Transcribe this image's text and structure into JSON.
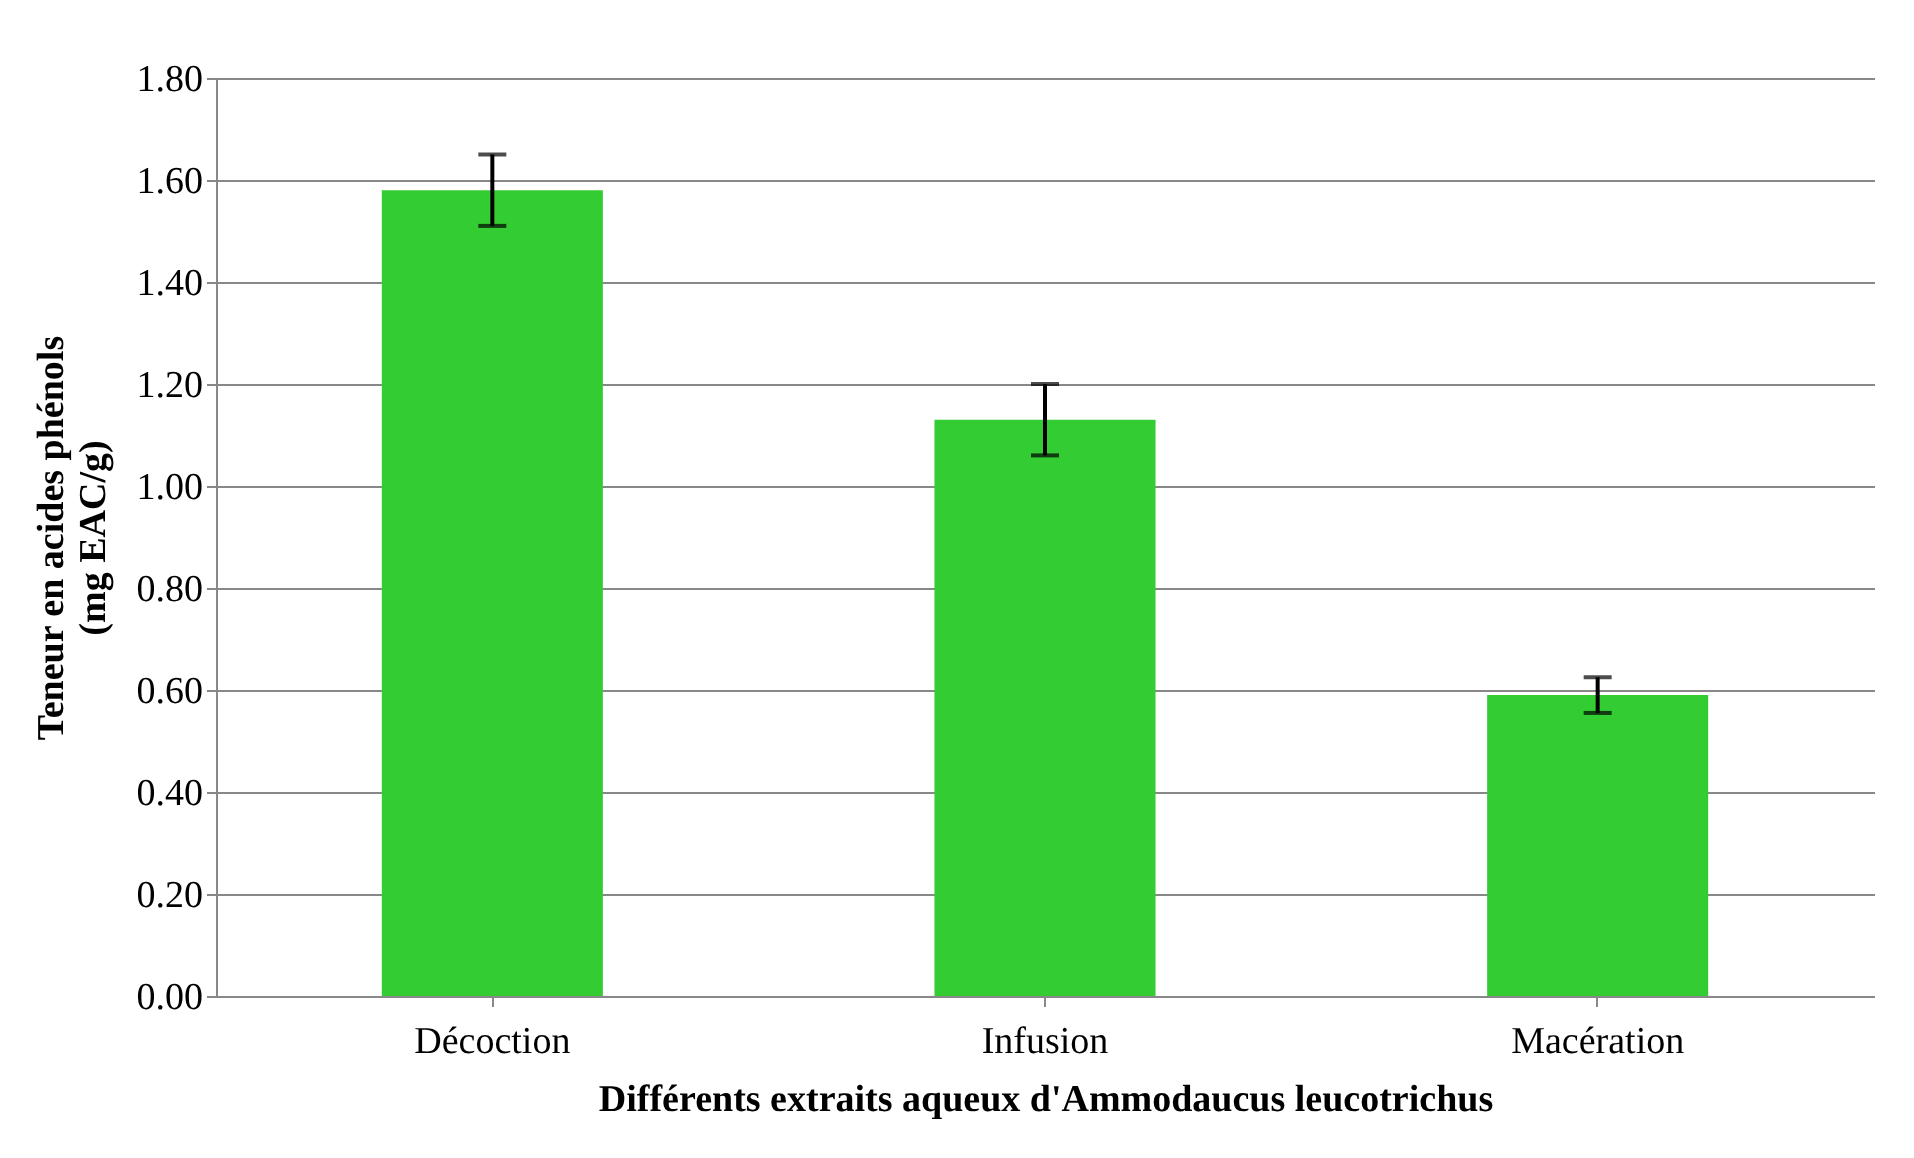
{
  "chart_data": {
    "type": "bar",
    "xlabel": "Différents extraits aqueux d'Ammodaucus leucotrichus",
    "ylabel": [
      "Teneur en acides phénols",
      "(mg EAC/g)"
    ],
    "categories": [
      "Décoction",
      "Infusion",
      "Macération"
    ],
    "values": [
      1.58,
      1.13,
      0.59
    ],
    "errors": [
      0.07,
      0.07,
      0.035
    ],
    "color": "#33cc33",
    "ylim": [
      0,
      1.8
    ],
    "yticks": [
      {
        "value": 0,
        "label": "0.00"
      },
      {
        "value": 0.2,
        "label": "0.20"
      },
      {
        "value": 0.4,
        "label": "0.40"
      },
      {
        "value": 0.6,
        "label": "0.60"
      },
      {
        "value": 0.8,
        "label": "0.80"
      },
      {
        "value": 1.0,
        "label": "1.00"
      },
      {
        "value": 1.2,
        "label": "1.20"
      },
      {
        "value": 1.4,
        "label": "1.40"
      },
      {
        "value": 1.6,
        "label": "1.60"
      },
      {
        "value": 1.8,
        "label": "1.80"
      }
    ],
    "grid": "y"
  }
}
